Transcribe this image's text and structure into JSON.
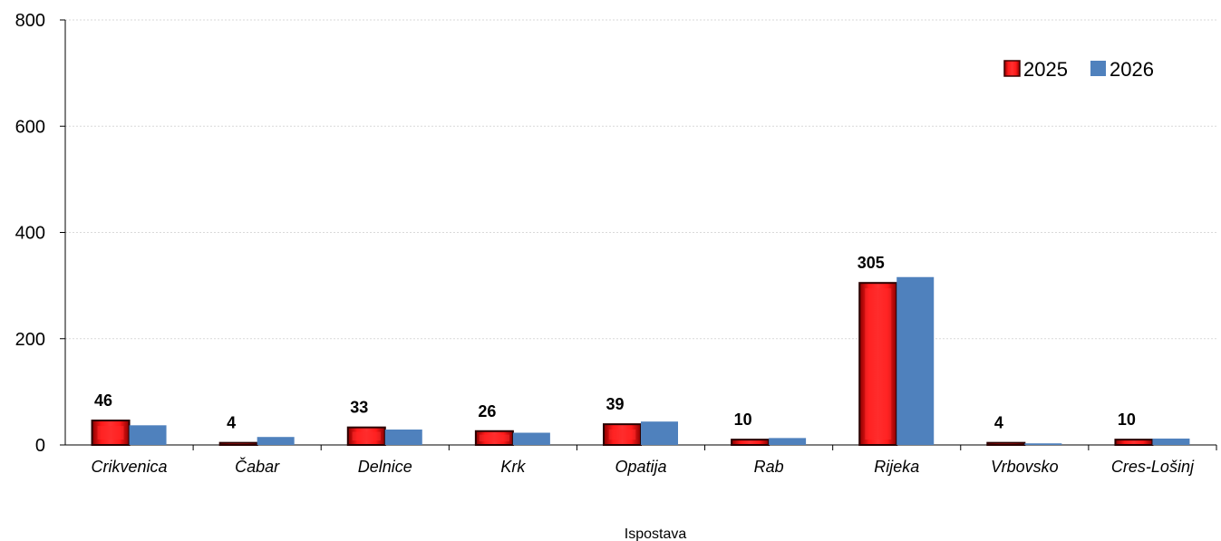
{
  "chart_data": {
    "type": "bar",
    "title": "",
    "xlabel": "Ispostava",
    "ylabel": "",
    "ylim": [
      0,
      800
    ],
    "yticks": [
      0,
      200,
      400,
      600,
      800
    ],
    "grid": true,
    "legend_position": "top-right",
    "categories": [
      "Crikvenica",
      "Čabar",
      "Delnice",
      "Krk",
      "Opatija",
      "Rab",
      "Rijeka",
      "Vrbovsko",
      "Cres-Lošinj"
    ],
    "series": [
      {
        "name": "2025",
        "color": "#e00000",
        "values": [
          46,
          4,
          33,
          26,
          39,
          10,
          305,
          4,
          10
        ],
        "data_labels": [
          "46",
          "4",
          "33",
          "26",
          "39",
          "10",
          "305",
          "4",
          "10"
        ]
      },
      {
        "name": "2026",
        "color": "#4f81bd",
        "values": [
          37,
          15,
          29,
          23,
          44,
          13,
          316,
          3,
          12
        ]
      }
    ]
  }
}
